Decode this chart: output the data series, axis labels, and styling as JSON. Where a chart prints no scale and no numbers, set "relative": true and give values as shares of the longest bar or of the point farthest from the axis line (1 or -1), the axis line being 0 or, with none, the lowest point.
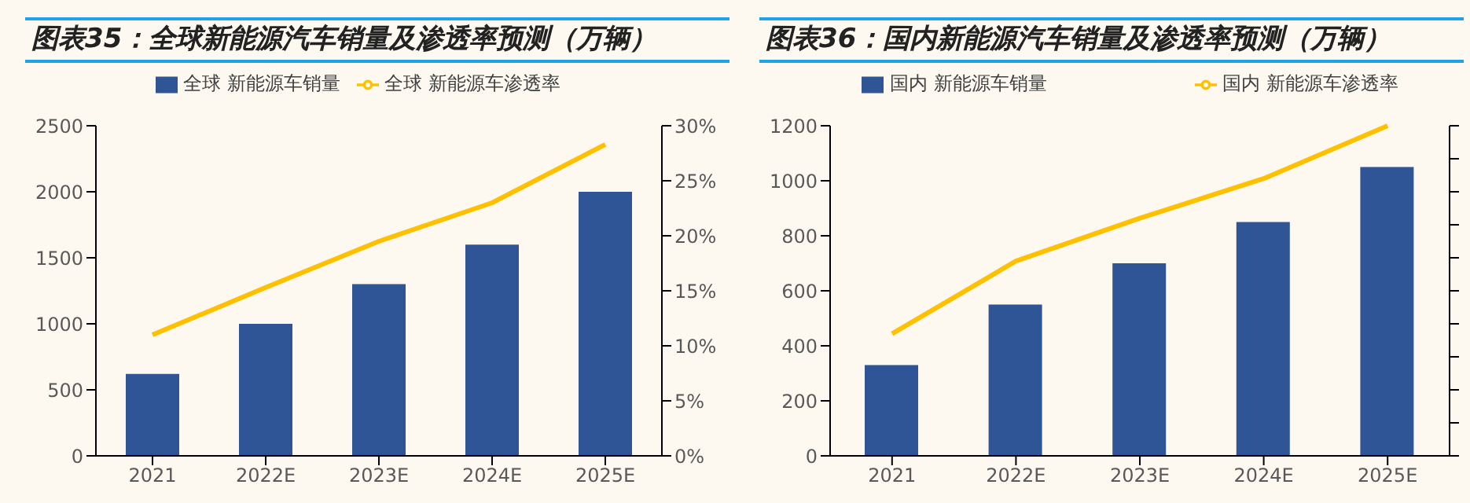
{
  "chart_data": [
    {
      "type": "bar",
      "title": "图表35：全球新能源汽车销量及渗透率预测（万辆）",
      "categories": [
        "2021",
        "2022E",
        "2023E",
        "2024E",
        "2025E"
      ],
      "series": [
        {
          "name": "全球 新能源车销量",
          "color": "#2f5597",
          "values": [
            620,
            1000,
            1300,
            1600,
            2000
          ]
        },
        {
          "name": "全球 新能源车渗透率",
          "type": "line",
          "axis": "y2",
          "color": "#ffc000",
          "values": [
            11.0,
            15.3,
            19.5,
            23.0,
            28.3
          ]
        }
      ],
      "ylim": [
        0,
        2500
      ],
      "yticks": [
        0,
        500,
        1000,
        1500,
        2000,
        2500
      ],
      "y2lim": [
        0,
        30
      ],
      "y2ticks": [
        {
          "value": 0,
          "label": "0%"
        },
        {
          "value": 5,
          "label": "5%"
        },
        {
          "value": 10,
          "label": "10%"
        },
        {
          "value": 15,
          "label": "15%"
        },
        {
          "value": 20,
          "label": "20%"
        },
        {
          "value": 25,
          "label": "25%"
        },
        {
          "value": 30,
          "label": "30%"
        }
      ],
      "legend": "top"
    },
    {
      "type": "bar",
      "title": "图表36：国内新能源汽车销量及渗透率预测（万辆）",
      "categories": [
        "2021",
        "2022E",
        "2023E",
        "2024E",
        "2025E"
      ],
      "series": [
        {
          "name": "国内 新能源车销量",
          "color": "#2f5597",
          "values": [
            330,
            550,
            700,
            850,
            1050
          ]
        }
      ],
      "ylim": [
        0,
        1200
      ],
      "yticks": [
        0,
        200,
        400,
        600,
        800,
        1000,
        1200
      ],
      "legend": "top left"
    },
    {
      "type": "line",
      "categories": [
        null,
        null,
        null,
        null,
        null
      ],
      "relative": true,
      "series": [
        {
          "name": "国内 新能源车渗透率",
          "color": "#ffc000",
          "values": [
            0.37,
            0.59,
            0.72,
            0.84,
            1
          ]
        }
      ],
      "legend": "top right"
    }
  ]
}
